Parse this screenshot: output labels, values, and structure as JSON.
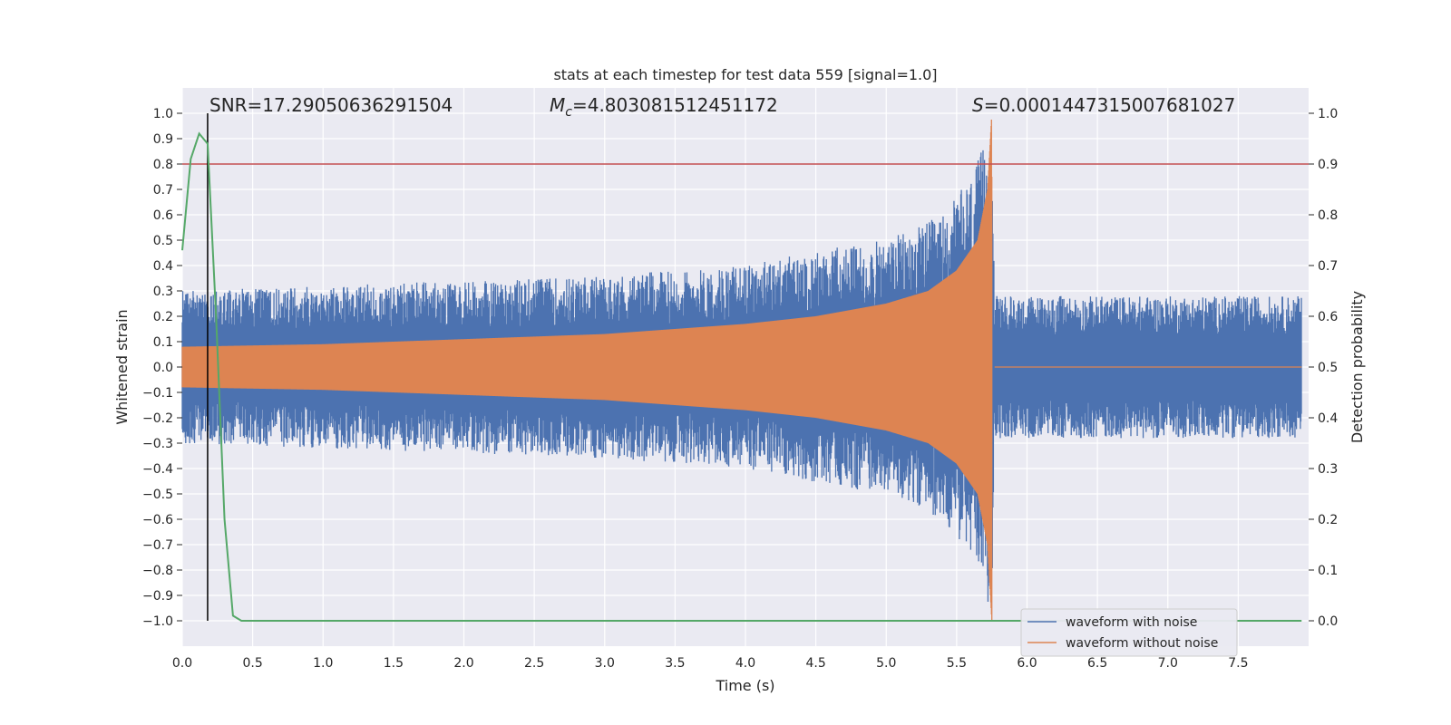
{
  "chart_data": {
    "type": "line",
    "title": "stats at each timestep for test data 559 [signal=1.0]",
    "xlabel": "Time (s)",
    "ylabel": "Whitened strain",
    "y2label": "Detection probability",
    "xlim": [
      0.0,
      8.0
    ],
    "ylim": [
      -1.1,
      1.1
    ],
    "y2lim": [
      -0.05,
      1.05
    ],
    "xticks": [
      "0.0",
      "0.5",
      "1.0",
      "1.5",
      "2.0",
      "2.5",
      "3.0",
      "3.5",
      "4.0",
      "4.5",
      "5.0",
      "5.5",
      "6.0",
      "6.5",
      "7.0",
      "7.5"
    ],
    "yticks": [
      "1.0",
      "0.9",
      "0.8",
      "0.7",
      "0.6",
      "0.5",
      "0.4",
      "0.3",
      "0.2",
      "0.1",
      "0.0",
      "−0.1",
      "−0.2",
      "−0.3",
      "−0.4",
      "−0.5",
      "−0.6",
      "−0.7",
      "−0.8",
      "−0.9",
      "−1.0"
    ],
    "y2ticks": [
      "1.0",
      "0.9",
      "0.8",
      "0.7",
      "0.6",
      "0.5",
      "0.4",
      "0.3",
      "0.2",
      "0.1",
      "0.0"
    ],
    "annotations": {
      "snr": "SNR=17.29050636291504",
      "mc_symbol": "M",
      "mc_sub": "c",
      "mc_value": "=4.803081512451172",
      "s_symbol": "S",
      "s_value": "=0.0001447315007681027"
    },
    "threshold": {
      "value": 0.9,
      "color": "#c44e52"
    },
    "detection_marker_time": 0.18,
    "merger_time": 5.75,
    "series": [
      {
        "name": "waveform with noise",
        "color": "#4c72b0",
        "description": "noisy whitened strain, envelope ~0.3 growing to 1.0 at merger, ~0.3 after",
        "envelope": [
          [
            0.0,
            0.3
          ],
          [
            1.0,
            0.32
          ],
          [
            2.0,
            0.34
          ],
          [
            3.0,
            0.36
          ],
          [
            4.0,
            0.4
          ],
          [
            4.5,
            0.46
          ],
          [
            5.0,
            0.5
          ],
          [
            5.4,
            0.6
          ],
          [
            5.6,
            0.75
          ],
          [
            5.7,
            0.88
          ],
          [
            5.75,
            1.0
          ],
          [
            5.77,
            0.28
          ],
          [
            8.0,
            0.28
          ]
        ]
      },
      {
        "name": "waveform without noise",
        "color": "#dd8452",
        "description": "chirp signal, amplitude ~0.08 growing to ~1.0 at merger, zero after",
        "envelope": [
          [
            0.0,
            0.08
          ],
          [
            1.0,
            0.09
          ],
          [
            2.0,
            0.11
          ],
          [
            3.0,
            0.13
          ],
          [
            4.0,
            0.17
          ],
          [
            4.5,
            0.2
          ],
          [
            5.0,
            0.25
          ],
          [
            5.3,
            0.3
          ],
          [
            5.5,
            0.38
          ],
          [
            5.65,
            0.5
          ],
          [
            5.72,
            0.7
          ],
          [
            5.75,
            1.0
          ],
          [
            5.77,
            0.0
          ],
          [
            8.0,
            0.0
          ]
        ]
      },
      {
        "name": "Detection probability",
        "color": "#55a868",
        "axis": "right",
        "x": [
          0.0,
          0.06,
          0.12,
          0.18,
          0.24,
          0.3,
          0.36,
          0.42,
          0.5,
          1.0,
          2.0,
          3.0,
          4.0,
          5.0,
          6.0,
          7.0,
          7.95
        ],
        "y": [
          0.73,
          0.91,
          0.96,
          0.94,
          0.6,
          0.2,
          0.01,
          0.0,
          0.0,
          0.0,
          0.0,
          0.0,
          0.0,
          0.0,
          0.0,
          0.0,
          0.0
        ]
      }
    ],
    "legend": [
      "waveform with noise",
      "waveform without noise"
    ],
    "legend_position": "lower-right",
    "grid": true
  }
}
